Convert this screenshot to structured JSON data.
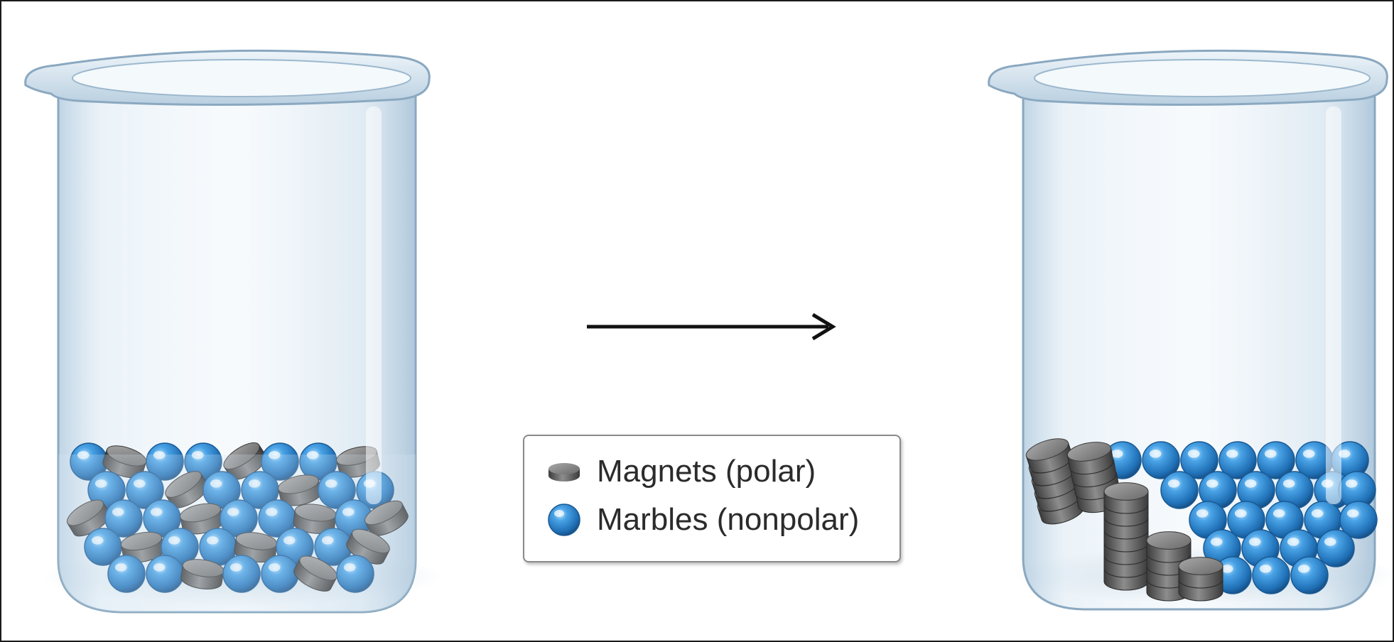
{
  "legend": {
    "items": [
      {
        "label": "Magnets (polar)",
        "icon": "magnet-disc-icon",
        "color": "#5a5a5a"
      },
      {
        "label": "Marbles (nonpolar)",
        "icon": "blue-marble-icon",
        "color": "#2f86cf"
      }
    ]
  },
  "colors": {
    "glass": "#c9dcea",
    "glass_edge": "#8aa8c0",
    "marble": "#2f86cf",
    "magnet": "#5a5a5a",
    "arrow": "#111111",
    "frame": "#1a1a1a"
  }
}
